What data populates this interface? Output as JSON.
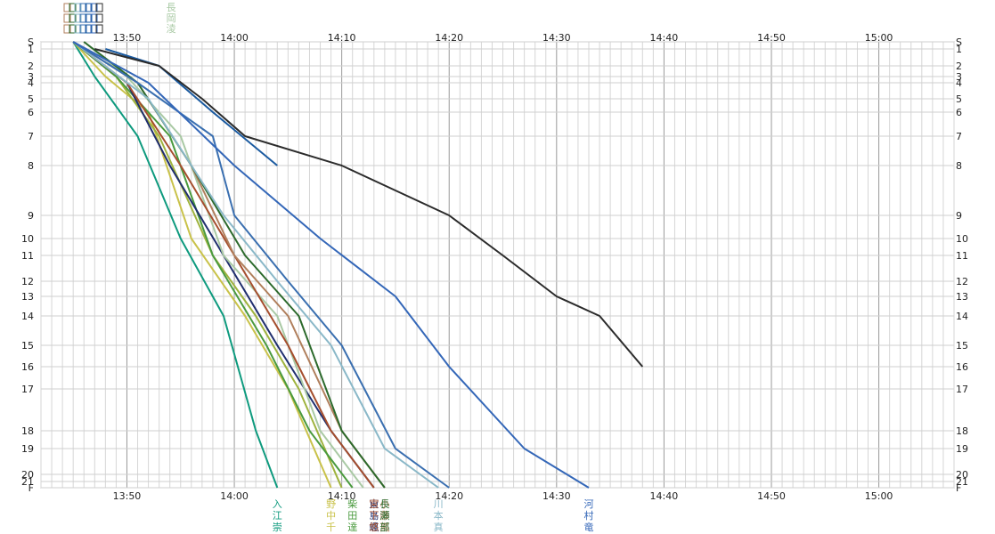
{
  "chart_data": {
    "type": "line",
    "x_axis": {
      "range": [
        "13:42",
        "15:07"
      ],
      "tick_labels": [
        "13:50",
        "14:00",
        "14:10",
        "14:20",
        "14:30",
        "14:40",
        "14:50",
        "15:00"
      ]
    },
    "y_axis": {
      "range": [
        0,
        22
      ],
      "tick_labels": [
        "S",
        "1",
        "2",
        "3",
        "4",
        "5",
        "6",
        "7",
        "8",
        "9",
        "10",
        "11",
        "12",
        "13",
        "14",
        "15",
        "16",
        "17",
        "18",
        "19",
        "20",
        "21",
        "F"
      ],
      "inverted": true
    },
    "grid": "minor every minute, major every 10 minutes",
    "top_name_labels": [
      "長",
      "岡",
      "淩"
    ],
    "series": [
      {
        "color": "#0e9a7e",
        "bottom_name": [
          "入",
          "江",
          "崇"
        ],
        "points": [
          [
            "13:45",
            0
          ],
          [
            "13:47",
            3
          ],
          [
            "13:51",
            7
          ],
          [
            "13:55",
            10
          ],
          [
            "13:59",
            14
          ],
          [
            "14:02",
            18
          ],
          [
            "14:04",
            22
          ]
        ]
      },
      {
        "color": "#c9c24a",
        "bottom_name": [
          "野",
          "中",
          "千"
        ],
        "points": [
          [
            "13:45",
            0
          ],
          [
            "13:48",
            3
          ],
          [
            "13:52",
            6
          ],
          [
            "13:56",
            10
          ],
          [
            "14:01",
            14
          ],
          [
            "14:05",
            17
          ],
          [
            "14:09",
            22
          ]
        ]
      },
      {
        "color": "#9fb33e",
        "points": [
          [
            "13:45",
            0
          ],
          [
            "13:49",
            3
          ],
          [
            "13:53",
            7
          ],
          [
            "13:58",
            11
          ],
          [
            "14:02",
            14
          ],
          [
            "14:06",
            17
          ],
          [
            "14:10",
            22
          ]
        ]
      },
      {
        "color": "#4a9a3e",
        "bottom_name": [
          "柴",
          "田",
          "達"
        ],
        "points": [
          [
            "13:45",
            0
          ],
          [
            "13:49",
            3
          ],
          [
            "13:54",
            7
          ],
          [
            "13:58",
            11
          ],
          [
            "14:03",
            15
          ],
          [
            "14:07",
            18
          ],
          [
            "14:11",
            22
          ]
        ]
      },
      {
        "color": "#1f2e6e",
        "bottom_name": [
          "東",
          "島",
          "颯"
        ],
        "points": [
          [
            "13:45",
            0
          ],
          [
            "13:50",
            4
          ],
          [
            "13:54",
            8
          ],
          [
            "13:59",
            11
          ],
          [
            "14:04",
            15
          ],
          [
            "14:09",
            18
          ],
          [
            "14:13",
            22
          ]
        ]
      },
      {
        "color": "#a9c9a4",
        "points": [
          [
            "13:46",
            0
          ],
          [
            "13:50",
            3
          ],
          [
            "13:55",
            7
          ],
          [
            "13:59",
            11
          ],
          [
            "14:04",
            14
          ],
          [
            "14:08",
            18
          ],
          [
            "14:12",
            22
          ]
        ]
      },
      {
        "color": "#a54e2e",
        "bottom_name": [
          "宮",
          "下",
          "悠"
        ],
        "points": [
          [
            "13:45",
            0
          ],
          [
            "13:50",
            4
          ],
          [
            "13:55",
            8
          ],
          [
            "14:00",
            11
          ],
          [
            "14:05",
            15
          ],
          [
            "14:09",
            18
          ],
          [
            "14:13",
            22
          ]
        ]
      },
      {
        "color": "#b07f5c",
        "bottom_name": [
          "小",
          "藤",
          "嵐"
        ],
        "points": [
          [
            "13:45",
            0
          ],
          [
            "13:51",
            4
          ],
          [
            "13:56",
            8
          ],
          [
            "14:00",
            11
          ],
          [
            "14:05",
            14
          ],
          [
            "14:10",
            18
          ],
          [
            "14:14",
            22
          ]
        ]
      },
      {
        "color": "#2c6a2c",
        "bottom_name": [
          "長",
          "瀬",
          "部"
        ],
        "points": [
          [
            "13:46",
            0
          ],
          [
            "13:51",
            4
          ],
          [
            "13:56",
            8
          ],
          [
            "14:01",
            11
          ],
          [
            "14:06",
            14
          ],
          [
            "14:10",
            18
          ],
          [
            "14:14",
            22
          ]
        ]
      },
      {
        "color": "#8ab8c8",
        "bottom_name": [
          "川",
          "本",
          "真"
        ],
        "points": [
          [
            "13:45",
            0
          ],
          [
            "13:52",
            5
          ],
          [
            "13:59",
            9
          ],
          [
            "14:04",
            12
          ],
          [
            "14:09",
            15
          ],
          [
            "14:14",
            19
          ],
          [
            "14:19",
            22
          ]
        ]
      },
      {
        "color": "#3a6fb0",
        "points": [
          [
            "13:45",
            0
          ],
          [
            "13:51",
            4
          ],
          [
            "13:58",
            7
          ],
          [
            "14:00",
            9
          ],
          [
            "14:05",
            12
          ],
          [
            "14:10",
            15
          ],
          [
            "14:15",
            19
          ],
          [
            "14:20",
            22
          ]
        ]
      },
      {
        "color": "#1a5aa0",
        "points": [
          [
            "13:48",
            1
          ],
          [
            "13:53",
            2
          ],
          [
            "13:58",
            6
          ],
          [
            "14:04",
            8
          ]
        ]
      },
      {
        "color": "#3467b8",
        "bottom_name": [
          "河",
          "村",
          "竜"
        ],
        "points": [
          [
            "13:45",
            0
          ],
          [
            "13:52",
            4
          ],
          [
            "14:00",
            8
          ],
          [
            "14:08",
            10
          ],
          [
            "14:15",
            13
          ],
          [
            "14:20",
            16
          ],
          [
            "14:27",
            19
          ],
          [
            "14:33",
            22
          ]
        ]
      },
      {
        "color": "#2b2b2b",
        "points": [
          [
            "13:47",
            1
          ],
          [
            "13:53",
            2
          ],
          [
            "13:57",
            5
          ],
          [
            "14:01",
            7
          ],
          [
            "14:10",
            8
          ],
          [
            "14:20",
            9
          ],
          [
            "14:25",
            11
          ],
          [
            "14:30",
            13
          ],
          [
            "14:34",
            14
          ],
          [
            "14:38",
            16
          ]
        ]
      }
    ]
  }
}
